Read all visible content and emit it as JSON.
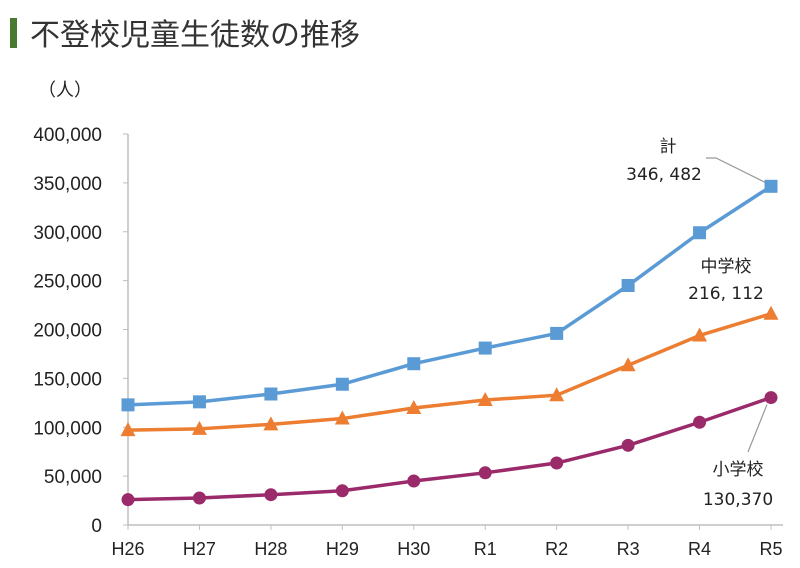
{
  "page": {
    "title": "不登校児童生徒数の推移"
  },
  "chart_data": {
    "type": "line",
    "title": "不登校児童生徒数の推移",
    "unit_label": "（人）",
    "categories": [
      "H26",
      "H27",
      "H28",
      "H29",
      "H30",
      "R1",
      "R2",
      "R3",
      "R4",
      "R5"
    ],
    "ylim": [
      0,
      400000
    ],
    "yticks": [
      0,
      50000,
      100000,
      150000,
      200000,
      250000,
      300000,
      350000,
      400000
    ],
    "ytick_labels": [
      "0",
      "50,000",
      "100,000",
      "150,000",
      "200,000",
      "250,000",
      "300,000",
      "350,000",
      "400,000"
    ],
    "grid": false,
    "series": [
      {
        "name": "計",
        "color": "#5b9bd5",
        "marker": "square",
        "values": [
          122900,
          126000,
          134000,
          144000,
          165000,
          181000,
          196000,
          245000,
          299000,
          346482
        ]
      },
      {
        "name": "中学校",
        "color": "#ed7d31",
        "marker": "triangle",
        "values": [
          97000,
          98400,
          103000,
          108900,
          119700,
          127900,
          132800,
          163400,
          193900,
          216112
        ]
      },
      {
        "name": "小学校",
        "color": "#9b2a6b",
        "marker": "circle",
        "values": [
          25900,
          27600,
          31000,
          35000,
          45000,
          53400,
          63400,
          81500,
          105100,
          130370
        ]
      }
    ],
    "annotations": [
      {
        "series": "計",
        "label": "計",
        "value_text": "346, 482"
      },
      {
        "series": "中学校",
        "label": "中学校",
        "value_text": "216, 112"
      },
      {
        "series": "小学校",
        "label": "小学校",
        "value_text": "130,370"
      }
    ]
  }
}
